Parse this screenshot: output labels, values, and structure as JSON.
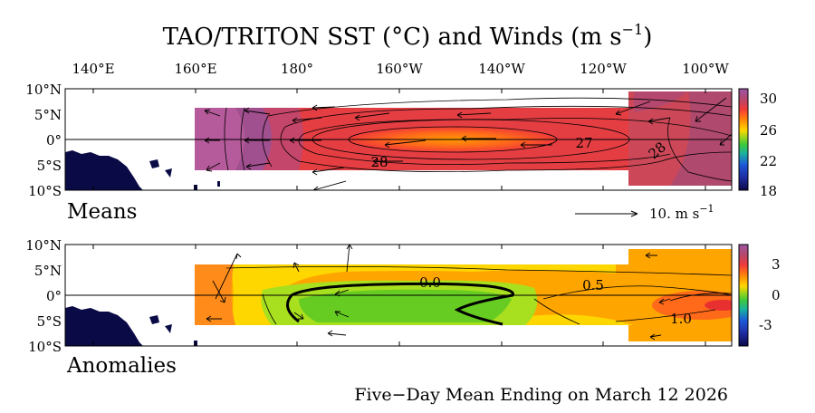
{
  "chart_data": [
    {
      "type": "heatmap",
      "panel": "means",
      "title_main": "TAO/TRITON SST (°C) and Winds (m s",
      "title_exp": "−1",
      "title_close": ")",
      "panel_label": "Means",
      "x_tick_labels": [
        "140°E",
        "160°E",
        "180°",
        "160°W",
        "140°W",
        "120°W",
        "100°W"
      ],
      "x_tick_lon": [
        140,
        160,
        180,
        200,
        220,
        240,
        260
      ],
      "y_tick_labels": [
        "10°N",
        "5°N",
        "0°",
        "5°S",
        "10°S"
      ],
      "y_tick_lat": [
        10,
        5,
        0,
        -5,
        -10
      ],
      "xlim": [
        130,
        266
      ],
      "ylim": [
        -10,
        10
      ],
      "colorbar": {
        "ticks": [
          30,
          26,
          22,
          18
        ],
        "range": [
          18,
          31
        ],
        "colors": [
          "#0a0a46",
          "#1e2a9e",
          "#1d58d8",
          "#1ab0a0",
          "#3cc83c",
          "#9ad41e",
          "#ffd700",
          "#ffa100",
          "#ff6a1a",
          "#f03a3a",
          "#b4486e",
          "#9a55a4"
        ]
      },
      "contour_labels": [
        "28",
        "27",
        "28"
      ],
      "wind_reference": {
        "label": "10.  m s",
        "exp": "−1"
      }
    },
    {
      "type": "heatmap",
      "panel": "anomalies",
      "panel_label": "Anomalies",
      "x_tick_labels": [
        "140°E",
        "160°E",
        "180°",
        "160°W",
        "140°W",
        "120°W",
        "100°W"
      ],
      "y_tick_labels": [
        "10°N",
        "5°N",
        "0°",
        "5°S",
        "10°S"
      ],
      "xlim": [
        130,
        266
      ],
      "ylim": [
        -10,
        10
      ],
      "colorbar": {
        "ticks": [
          3,
          0,
          -3
        ],
        "range": [
          -5,
          5
        ],
        "colors": [
          "#0a0a46",
          "#1e2a9e",
          "#1d58d8",
          "#1ab0a0",
          "#3cc83c",
          "#9ad41e",
          "#ffd700",
          "#ffa100",
          "#ff6a1a",
          "#f03a3a",
          "#b4486e",
          "#9a55a4"
        ]
      },
      "contour_labels": [
        "0.0",
        "0.5",
        "1.0"
      ]
    }
  ],
  "footer": "Five−Day Mean Ending on March 12 2026"
}
